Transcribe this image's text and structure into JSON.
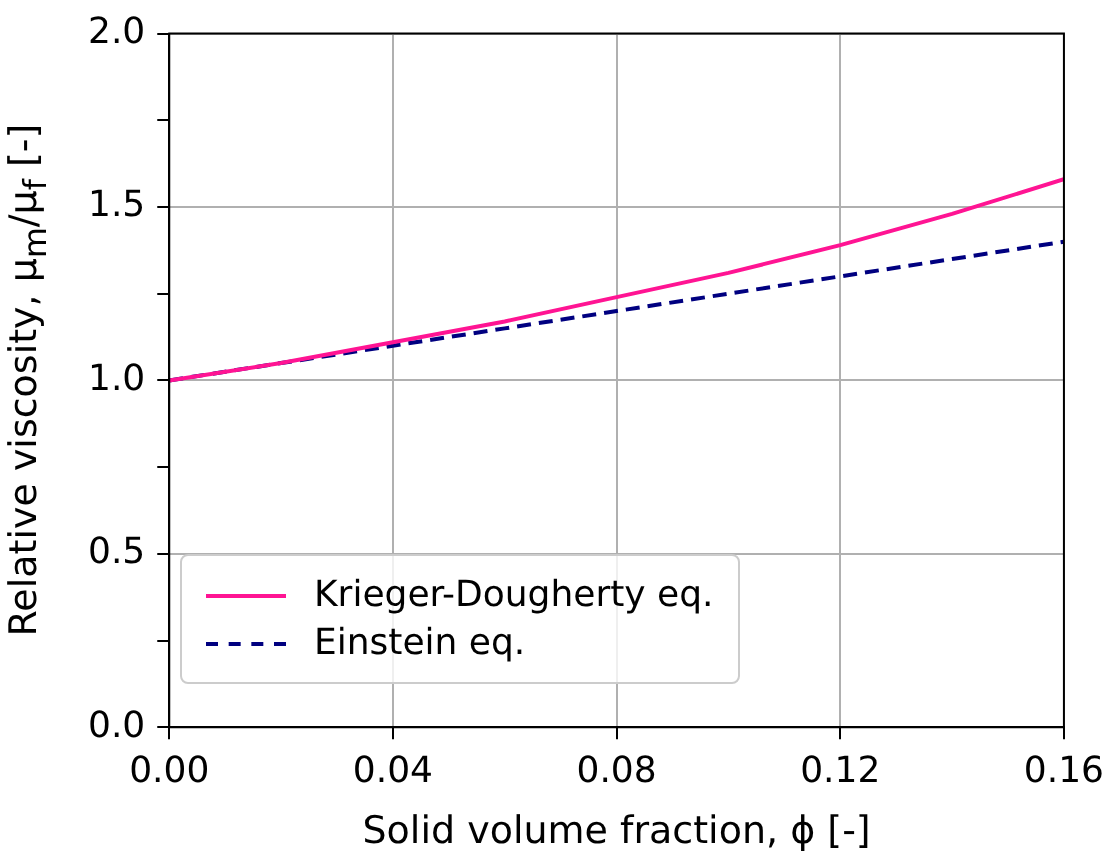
{
  "chart_data": {
    "type": "line",
    "xlabel": "Solid volume fraction, ϕ [-]",
    "ylabel": "Relative viscosity, μ$_{m}$/μ$_{f}$ [-]",
    "x": [
      0,
      0.02,
      0.04,
      0.06,
      0.08,
      0.1,
      0.12,
      0.14,
      0.16
    ],
    "series": [
      {
        "name": "Krieger-Dougherty eq.",
        "color": "#ff1493",
        "line_style": "solid",
        "values": [
          1,
          1.05,
          1.11,
          1.17,
          1.24,
          1.31,
          1.39,
          1.48,
          1.58
        ]
      },
      {
        "name": "Einstein eq.",
        "color": "#000080",
        "line_style": "dashed",
        "values": [
          1,
          1.05,
          1.1,
          1.15,
          1.2,
          1.25,
          1.3,
          1.35,
          1.4
        ]
      }
    ],
    "xlim": [
      0,
      0.16
    ],
    "xticks": [
      {
        "value": 0,
        "label": "0.00"
      },
      {
        "value": 0.04,
        "label": "0.04"
      },
      {
        "value": 0.08,
        "label": "0.08"
      },
      {
        "value": 0.12,
        "label": "0.12"
      },
      {
        "value": 0.16,
        "label": "0.16"
      }
    ],
    "ylim": [
      0,
      2
    ],
    "yticks": [
      {
        "value": 0,
        "label": "0.0"
      },
      {
        "value": 0.25,
        "label": null
      },
      {
        "value": 0.5,
        "label": "0.5"
      },
      {
        "value": 0.75,
        "label": null
      },
      {
        "value": 1,
        "label": "1.0"
      },
      {
        "value": 1.25,
        "label": null
      },
      {
        "value": 1.5,
        "label": "1.5"
      },
      {
        "value": 1.75,
        "label": null
      },
      {
        "value": 2,
        "label": "2.0"
      }
    ],
    "grid": true,
    "legend": "bottom left",
    "marker": "none"
  }
}
